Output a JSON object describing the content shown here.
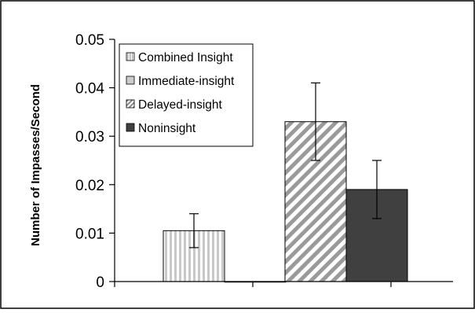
{
  "chart_data": {
    "type": "bar",
    "ylabel": "Number of Impasses/Second",
    "ylim": [
      0,
      0.05
    ],
    "yticks": [
      0,
      0.01,
      0.02,
      0.03,
      0.04,
      0.05
    ],
    "ytick_labels": [
      "0",
      "0.01",
      "0.02",
      "0.03",
      "0.04",
      "0.05"
    ],
    "grid": false,
    "legend_position": "top-left",
    "groups": [
      "",
      ""
    ],
    "series": [
      {
        "name": "Combined Insight",
        "values": [
          0.0105,
          null
        ],
        "errors": [
          0.0035,
          null
        ],
        "pattern": "vertical-stripes",
        "color": "#cccccc"
      },
      {
        "name": "Immediate-insight",
        "values": [
          0,
          null
        ],
        "errors": [
          null,
          null
        ],
        "pattern": "solid",
        "color": "#cccccc"
      },
      {
        "name": "Delayed-insight",
        "values": [
          null,
          0.033
        ],
        "errors": [
          null,
          0.008
        ],
        "pattern": "diagonal-stripes",
        "color": "#999999"
      },
      {
        "name": "Noninsight",
        "values": [
          null,
          0.019
        ],
        "errors": [
          null,
          0.006
        ],
        "pattern": "solid",
        "color": "#404040"
      }
    ]
  }
}
